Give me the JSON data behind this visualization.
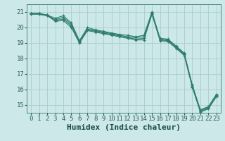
{
  "title": "",
  "xlabel": "Humidex (Indice chaleur)",
  "bg_color": "#cce8e8",
  "grid_color": "#aacccc",
  "line_color": "#2e7d6e",
  "xlim": [
    -0.5,
    23.5
  ],
  "ylim": [
    14.5,
    21.5
  ],
  "yticks": [
    15,
    16,
    17,
    18,
    19,
    20,
    21
  ],
  "xticks": [
    0,
    1,
    2,
    3,
    4,
    5,
    6,
    7,
    8,
    9,
    10,
    11,
    12,
    13,
    14,
    15,
    16,
    17,
    18,
    19,
    20,
    21,
    22,
    23
  ],
  "series": [
    {
      "x": [
        0,
        1,
        2,
        3,
        4,
        5,
        6,
        7,
        8,
        9,
        10,
        11,
        12,
        13,
        14,
        15,
        16,
        17,
        18,
        19,
        20,
        21,
        22,
        23
      ],
      "y": [
        20.9,
        20.9,
        20.8,
        20.6,
        20.75,
        20.3,
        19.15,
        20.0,
        19.85,
        19.75,
        19.65,
        19.55,
        19.5,
        19.4,
        19.5,
        21.0,
        19.3,
        19.25,
        18.8,
        18.35,
        16.3,
        14.7,
        14.9,
        15.7
      ]
    },
    {
      "x": [
        0,
        1,
        2,
        3,
        4,
        5,
        6,
        7,
        8,
        9,
        10,
        11,
        12,
        13,
        14,
        15,
        16,
        17,
        18,
        19,
        20,
        21,
        22,
        23
      ],
      "y": [
        20.9,
        20.9,
        20.8,
        20.5,
        20.65,
        20.2,
        19.1,
        19.9,
        19.8,
        19.7,
        19.6,
        19.5,
        19.4,
        19.35,
        19.4,
        20.95,
        19.25,
        19.2,
        18.75,
        18.3,
        16.25,
        14.65,
        14.85,
        15.65
      ]
    },
    {
      "x": [
        0,
        1,
        2,
        3,
        4,
        5,
        6,
        7,
        8,
        9,
        10,
        11,
        12,
        13,
        14,
        15,
        16,
        17,
        18,
        19,
        20,
        21,
        22,
        23
      ],
      "y": [
        20.85,
        20.85,
        20.75,
        20.45,
        20.55,
        20.1,
        19.05,
        19.85,
        19.75,
        19.65,
        19.55,
        19.45,
        19.35,
        19.25,
        19.3,
        20.9,
        19.2,
        19.15,
        18.7,
        18.25,
        16.2,
        14.6,
        14.8,
        15.6
      ]
    },
    {
      "x": [
        0,
        1,
        2,
        3,
        4,
        5,
        6,
        7,
        8,
        9,
        10,
        11,
        12,
        13,
        14,
        15,
        16,
        17,
        18,
        19,
        20,
        21,
        22,
        23
      ],
      "y": [
        20.9,
        20.9,
        20.8,
        20.4,
        20.45,
        20.0,
        19.0,
        19.8,
        19.7,
        19.6,
        19.5,
        19.4,
        19.3,
        19.2,
        19.2,
        20.85,
        19.15,
        19.1,
        18.65,
        18.2,
        16.15,
        14.55,
        14.75,
        15.55
      ]
    }
  ],
  "font_family": "monospace",
  "tick_fontsize": 6.5,
  "xlabel_fontsize": 8,
  "linewidth": 0.8,
  "markersize": 3.5
}
